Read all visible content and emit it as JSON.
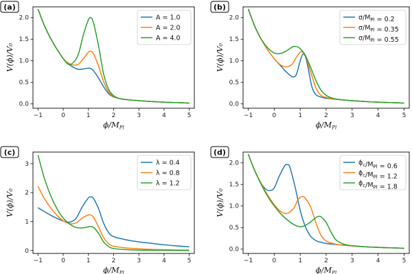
{
  "chart_data": [
    {
      "type": "line",
      "panel_label": "(a)",
      "xlabel": "ϕ/M_Pl",
      "ylabel": "V(ϕ)/V₀",
      "xlim": [
        -1.2,
        5.2
      ],
      "ylim": [
        -0.1,
        2.25
      ],
      "xticks": [
        -1,
        0,
        1,
        2,
        3,
        4,
        5
      ],
      "xtick_labels": [
        "−1",
        "0",
        "1",
        "2",
        "3",
        "4",
        "5"
      ],
      "yticks": [
        0.0,
        0.5,
        1.0,
        1.5,
        2.0
      ],
      "ytick_labels": [
        "0.0",
        "0.5",
        "1.0",
        "1.5",
        "2.0"
      ],
      "legend_position": "top-right",
      "series": [
        {
          "name": "A = 1.0",
          "color": "#1f77b4",
          "x": [
            -1,
            -0.75,
            -0.5,
            -0.25,
            0,
            0.2,
            0.4,
            0.6,
            0.8,
            1.0,
            1.1,
            1.2,
            1.4,
            1.6,
            1.8,
            2.0,
            2.2,
            2.5,
            3,
            3.5,
            4,
            4.5,
            5
          ],
          "y": [
            2.2,
            1.82,
            1.52,
            1.27,
            1.05,
            0.93,
            0.85,
            0.8,
            0.81,
            0.83,
            0.82,
            0.77,
            0.6,
            0.4,
            0.24,
            0.16,
            0.13,
            0.1,
            0.075,
            0.055,
            0.04,
            0.03,
            0.02
          ]
        },
        {
          "name": "A = 2.0",
          "color": "#ff7f0e",
          "x": [
            -1,
            -0.75,
            -0.5,
            -0.25,
            0,
            0.2,
            0.4,
            0.6,
            0.8,
            1.0,
            1.1,
            1.2,
            1.4,
            1.6,
            1.8,
            2.0,
            2.2,
            2.5,
            3,
            3.5,
            4,
            4.5,
            5
          ],
          "y": [
            2.2,
            1.82,
            1.52,
            1.27,
            1.05,
            0.95,
            0.9,
            0.92,
            1.05,
            1.2,
            1.22,
            1.16,
            0.88,
            0.52,
            0.28,
            0.17,
            0.13,
            0.1,
            0.075,
            0.055,
            0.04,
            0.03,
            0.02
          ]
        },
        {
          "name": "A = 4.0",
          "color": "#2ca02c",
          "x": [
            -1,
            -0.75,
            -0.5,
            -0.25,
            0,
            0.2,
            0.4,
            0.6,
            0.8,
            1.0,
            1.1,
            1.2,
            1.4,
            1.6,
            1.8,
            2.0,
            2.2,
            2.5,
            3,
            3.5,
            4,
            4.5,
            5
          ],
          "y": [
            2.2,
            1.82,
            1.52,
            1.27,
            1.05,
            0.92,
            0.96,
            1.15,
            1.6,
            1.95,
            2.0,
            1.88,
            1.35,
            0.7,
            0.34,
            0.19,
            0.13,
            0.1,
            0.075,
            0.055,
            0.04,
            0.03,
            0.02
          ]
        }
      ]
    },
    {
      "type": "line",
      "panel_label": "(b)",
      "xlabel": "ϕ/M_Pl",
      "ylabel": "V(ϕ)/V₀",
      "xlim": [
        -1.2,
        5.2
      ],
      "ylim": [
        -0.1,
        2.25
      ],
      "xticks": [
        -1,
        0,
        1,
        2,
        3,
        4,
        5
      ],
      "xtick_labels": [
        "−1",
        "0",
        "1",
        "2",
        "3",
        "4",
        "5"
      ],
      "yticks": [
        0.0,
        0.5,
        1.0,
        1.5,
        2.0
      ],
      "ytick_labels": [
        "0.0",
        "0.5",
        "1.0",
        "1.5",
        "2.0"
      ],
      "legend_position": "top-right",
      "series": [
        {
          "name": "σ/M_Pl = 0.2",
          "color": "#1f77b4",
          "x": [
            -1,
            -0.75,
            -0.5,
            -0.25,
            0,
            0.25,
            0.5,
            0.7,
            0.85,
            1.0,
            1.1,
            1.2,
            1.3,
            1.45,
            1.6,
            1.8,
            2.0,
            2.5,
            3,
            3.5,
            4,
            4.5,
            5
          ],
          "y": [
            2.2,
            1.8,
            1.5,
            1.25,
            1.05,
            0.88,
            0.72,
            0.63,
            0.68,
            1.0,
            1.15,
            1.1,
            0.85,
            0.4,
            0.22,
            0.16,
            0.13,
            0.1,
            0.075,
            0.055,
            0.04,
            0.03,
            0.02
          ]
        },
        {
          "name": "σ/M_Pl = 0.35",
          "color": "#ff7f0e",
          "x": [
            -1,
            -0.75,
            -0.5,
            -0.25,
            0,
            0.25,
            0.5,
            0.7,
            0.85,
            1.0,
            1.1,
            1.2,
            1.4,
            1.6,
            1.8,
            2.0,
            2.2,
            2.5,
            3,
            3.5,
            4,
            4.5,
            5
          ],
          "y": [
            2.2,
            1.8,
            1.5,
            1.25,
            1.05,
            0.9,
            0.86,
            0.93,
            1.08,
            1.2,
            1.2,
            1.12,
            0.75,
            0.38,
            0.2,
            0.15,
            0.12,
            0.1,
            0.075,
            0.055,
            0.04,
            0.03,
            0.02
          ]
        },
        {
          "name": "σ/M_Pl = 0.55",
          "color": "#2ca02c",
          "x": [
            -1,
            -0.75,
            -0.5,
            -0.25,
            0,
            0.25,
            0.5,
            0.7,
            0.85,
            1.0,
            1.2,
            1.4,
            1.6,
            1.8,
            2.0,
            2.2,
            2.5,
            3,
            3.5,
            4,
            4.5,
            5
          ],
          "y": [
            2.2,
            1.8,
            1.5,
            1.3,
            1.18,
            1.17,
            1.24,
            1.32,
            1.33,
            1.28,
            1.12,
            0.85,
            0.55,
            0.32,
            0.2,
            0.14,
            0.1,
            0.075,
            0.055,
            0.04,
            0.03,
            0.02
          ]
        }
      ]
    },
    {
      "type": "line",
      "panel_label": "(c)",
      "xlabel": "ϕ/M_Pl",
      "ylabel": "V(ϕ)/V₀",
      "xlim": [
        -1.2,
        5.2
      ],
      "ylim": [
        -0.1,
        3.4
      ],
      "xticks": [
        -1,
        0,
        1,
        2,
        3,
        4,
        5
      ],
      "xtick_labels": [
        "−1",
        "0",
        "1",
        "2",
        "3",
        "4",
        "5"
      ],
      "yticks": [
        0,
        1,
        2,
        3
      ],
      "ytick_labels": [
        "0",
        "1",
        "2",
        "3"
      ],
      "legend_position": "top-right",
      "series": [
        {
          "name": "λ = 0.4",
          "color": "#1f77b4",
          "x": [
            -1,
            -0.5,
            0,
            0.25,
            0.5,
            0.75,
            1.0,
            1.1,
            1.2,
            1.4,
            1.6,
            1.8,
            2.0,
            2.5,
            3,
            3.5,
            4,
            4.5,
            5
          ],
          "y": [
            1.48,
            1.22,
            1.02,
            0.98,
            1.1,
            1.5,
            1.82,
            1.85,
            1.8,
            1.45,
            0.95,
            0.62,
            0.48,
            0.37,
            0.3,
            0.25,
            0.2,
            0.16,
            0.13
          ]
        },
        {
          "name": "λ = 0.8",
          "color": "#ff7f0e",
          "x": [
            -1,
            -0.75,
            -0.5,
            -0.25,
            0,
            0.25,
            0.5,
            0.75,
            1.0,
            1.1,
            1.2,
            1.4,
            1.6,
            1.8,
            2.0,
            2.5,
            3,
            3.5,
            4,
            4.5,
            5
          ],
          "y": [
            2.22,
            1.8,
            1.48,
            1.22,
            1.03,
            0.93,
            0.95,
            1.12,
            1.23,
            1.22,
            1.15,
            0.82,
            0.45,
            0.24,
            0.15,
            0.09,
            0.06,
            0.04,
            0.03,
            0.02,
            0.015
          ]
        },
        {
          "name": "λ = 1.2",
          "color": "#2ca02c",
          "x": [
            -1,
            -0.75,
            -0.5,
            -0.25,
            0,
            0.25,
            0.5,
            0.75,
            1.0,
            1.1,
            1.2,
            1.4,
            1.6,
            1.8,
            2.0,
            2.5,
            3,
            3.5,
            4,
            4.5,
            5
          ],
          "y": [
            3.3,
            2.5,
            1.9,
            1.45,
            1.12,
            0.92,
            0.8,
            0.78,
            0.82,
            0.83,
            0.8,
            0.6,
            0.3,
            0.14,
            0.07,
            0.03,
            0.015,
            0.01,
            0.005,
            0.003,
            0.002
          ]
        }
      ]
    },
    {
      "type": "line",
      "panel_label": "(d)",
      "xlabel": "ϕ/M_Pl",
      "ylabel": "V(ϕ)/V₀",
      "xlim": [
        -1.2,
        5.2
      ],
      "ylim": [
        -0.1,
        2.25
      ],
      "xticks": [
        -1,
        0,
        1,
        2,
        3,
        4,
        5
      ],
      "xtick_labels": [
        "−1",
        "0",
        "1",
        "2",
        "3",
        "4",
        "5"
      ],
      "yticks": [
        0.0,
        0.5,
        1.0,
        1.5,
        2.0
      ],
      "ytick_labels": [
        "0.0",
        "0.5",
        "1.0",
        "1.5",
        "2.0"
      ],
      "legend_position": "top-right",
      "series": [
        {
          "name": "ϕ_c/M_Pl = 0.6",
          "color": "#1f77b4",
          "x": [
            -1,
            -0.75,
            -0.5,
            -0.3,
            -0.15,
            0,
            0.2,
            0.4,
            0.5,
            0.6,
            0.8,
            1.0,
            1.2,
            1.4,
            1.6,
            1.8,
            2.0,
            2.5,
            3,
            3.5,
            4,
            4.5,
            5
          ],
          "y": [
            2.2,
            1.82,
            1.52,
            1.38,
            1.36,
            1.42,
            1.7,
            1.93,
            1.96,
            1.9,
            1.45,
            0.9,
            0.52,
            0.3,
            0.2,
            0.16,
            0.13,
            0.1,
            0.075,
            0.055,
            0.04,
            0.03,
            0.02
          ]
        },
        {
          "name": "ϕ_c/M_Pl = 1.2",
          "color": "#ff7f0e",
          "x": [
            -1,
            -0.75,
            -0.5,
            -0.25,
            0,
            0.25,
            0.5,
            0.75,
            0.9,
            1.0,
            1.1,
            1.2,
            1.4,
            1.6,
            1.8,
            2.0,
            2.2,
            2.5,
            3,
            3.5,
            4,
            4.5,
            5
          ],
          "y": [
            2.2,
            1.82,
            1.52,
            1.25,
            1.03,
            0.87,
            0.83,
            0.95,
            1.13,
            1.2,
            1.22,
            1.18,
            0.98,
            0.62,
            0.32,
            0.19,
            0.14,
            0.1,
            0.075,
            0.055,
            0.04,
            0.03,
            0.02
          ]
        },
        {
          "name": "ϕ_c/M_Pl = 1.8",
          "color": "#2ca02c",
          "x": [
            -1,
            -0.75,
            -0.5,
            -0.25,
            0,
            0.25,
            0.5,
            0.75,
            1.0,
            1.2,
            1.4,
            1.6,
            1.7,
            1.8,
            2.0,
            2.2,
            2.4,
            2.7,
            3,
            3.5,
            4,
            4.5,
            5
          ],
          "y": [
            2.2,
            1.82,
            1.5,
            1.22,
            1.0,
            0.82,
            0.68,
            0.57,
            0.52,
            0.55,
            0.63,
            0.73,
            0.76,
            0.75,
            0.62,
            0.38,
            0.2,
            0.11,
            0.08,
            0.055,
            0.04,
            0.03,
            0.02
          ]
        }
      ]
    }
  ]
}
